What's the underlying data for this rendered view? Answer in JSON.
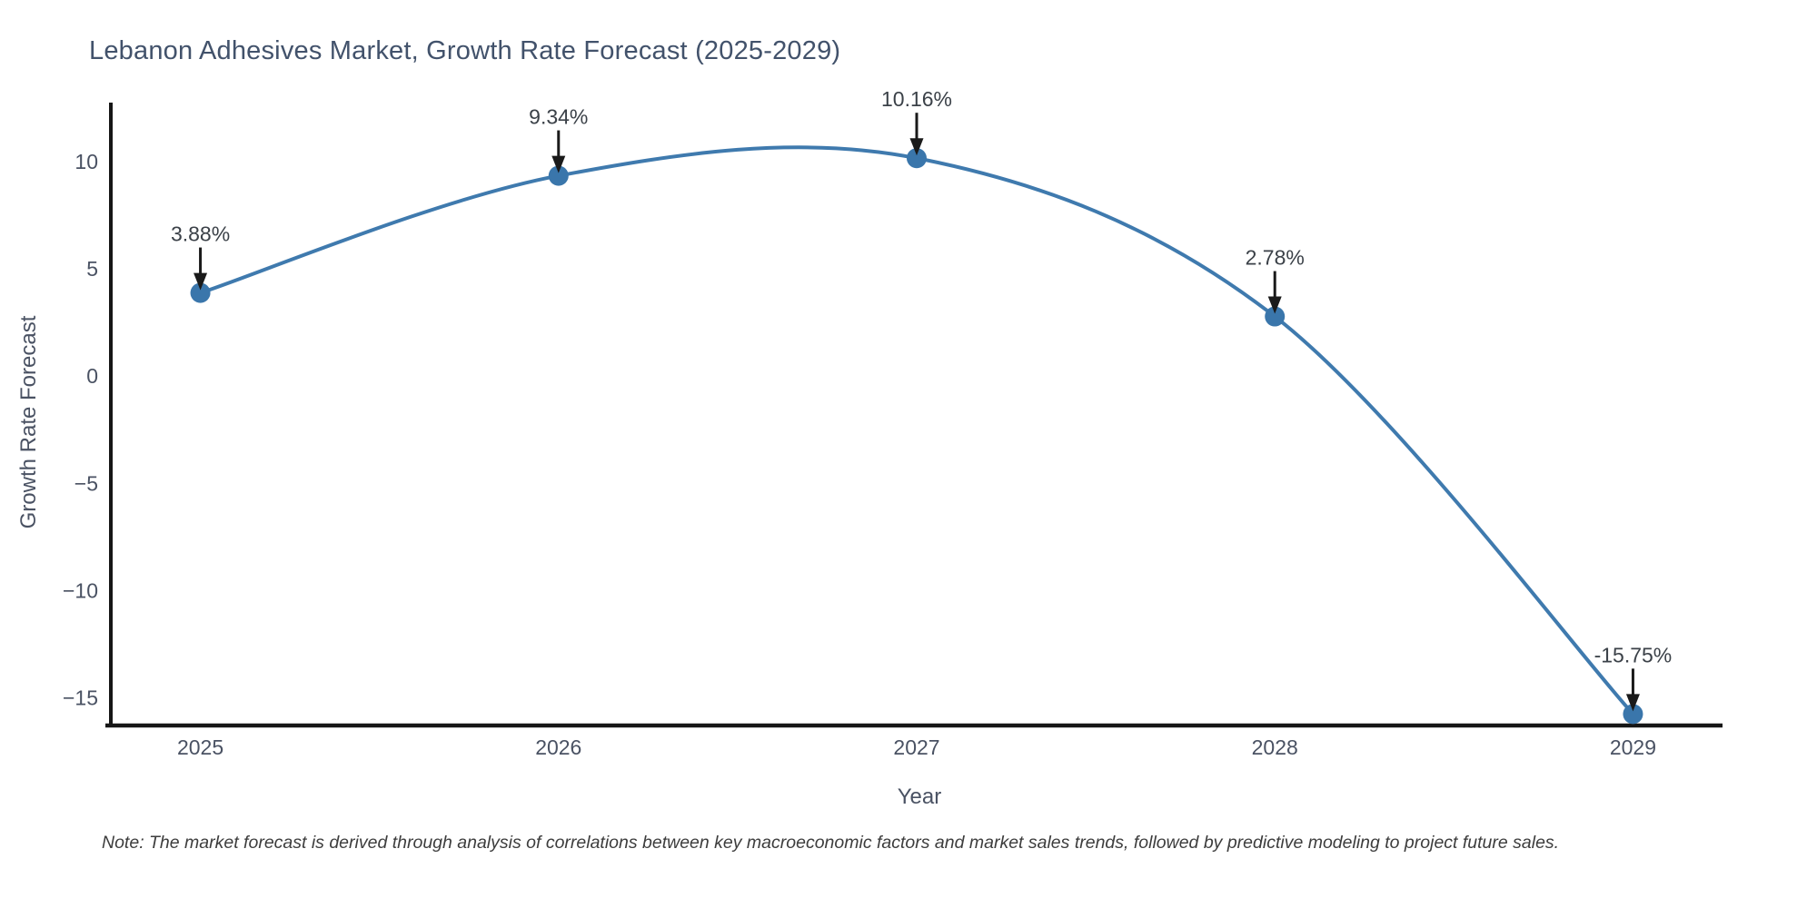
{
  "figure": {
    "note": "Note: The market forecast is derived through analysis of correlations between key macroeconomic factors and market sales trends, followed by predictive modeling to project future sales."
  },
  "chart_data": {
    "type": "line",
    "line_shape": "spline",
    "title": "Lebanon Adhesives Market, Growth Rate Forecast (2025-2029)",
    "xlabel": "Year",
    "ylabel": "Growth Rate Forecast",
    "x": [
      2025,
      2026,
      2027,
      2028,
      2029
    ],
    "values": [
      3.88,
      9.34,
      10.16,
      2.78,
      -15.75
    ],
    "point_labels": [
      "3.88%",
      "9.34%",
      "10.16%",
      "2.78%",
      "-15.75%"
    ],
    "x_tick_labels": [
      "2025",
      "2026",
      "2027",
      "2028",
      "2029"
    ],
    "y_ticks": [
      10,
      5,
      0,
      -5,
      -10,
      -15
    ],
    "y_tick_labels": [
      "10",
      "5",
      "0",
      "−5",
      "−10",
      "−15"
    ],
    "xlim": [
      2024.75,
      2029.25
    ],
    "ylim": [
      -16.2,
      12.75
    ],
    "grid": false,
    "legend": "none",
    "markers": true,
    "colors": {
      "line": "#3f7aae",
      "marker": "#3a76ab",
      "annotation_text": "#3b4148",
      "arrow": "#1a1a1a",
      "axis_line": "#161616",
      "tick_label": "#4a5263",
      "axis_title": "#4a5263",
      "title": "#42526b",
      "note": "#3d3d3d",
      "background": "#ffffff"
    }
  }
}
